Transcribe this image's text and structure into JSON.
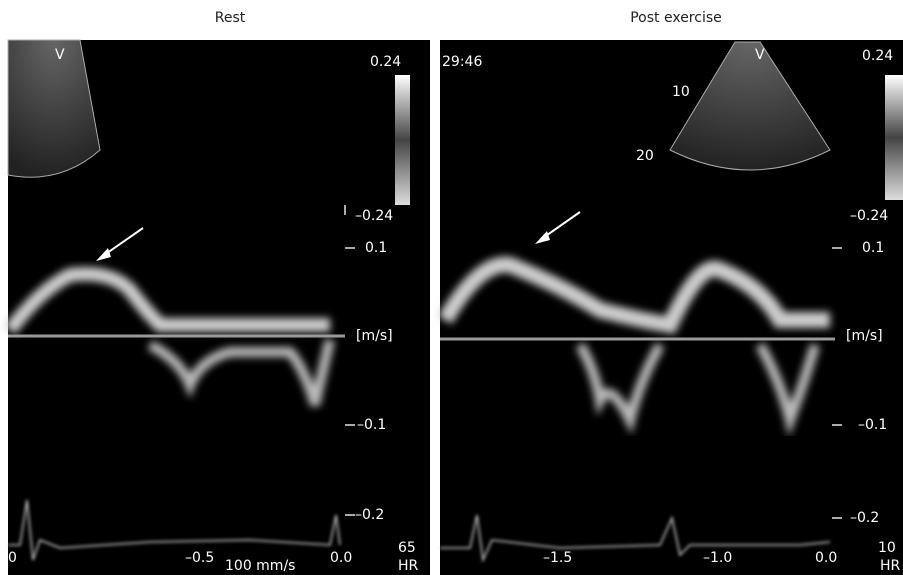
{
  "panels": [
    {
      "title": "Rest",
      "probe_label": "V",
      "color_scale": {
        "top": "0.24",
        "bottom": "–0.24"
      },
      "velocity_axis": [
        "0.1",
        "[m/s]",
        "–0.1",
        "–0.2"
      ],
      "time_axis": [
        "0",
        "–0.5",
        "0.0"
      ],
      "sweep": "100 mm/s",
      "hr": {
        "value": "65",
        "label": "HR"
      }
    },
    {
      "title": "Post exercise",
      "probe_label": "V",
      "clock": "29:46",
      "depth_marks": [
        "10",
        "20"
      ],
      "color_scale": {
        "top": "0.24",
        "bottom": "–0.24"
      },
      "velocity_axis": [
        "0.1",
        "[m/s]",
        "–0.1",
        "–0.2"
      ],
      "time_axis": [
        "–1.5",
        "–1.0",
        "0.0"
      ],
      "hr": {
        "value": "10",
        "label": "HR"
      }
    }
  ]
}
